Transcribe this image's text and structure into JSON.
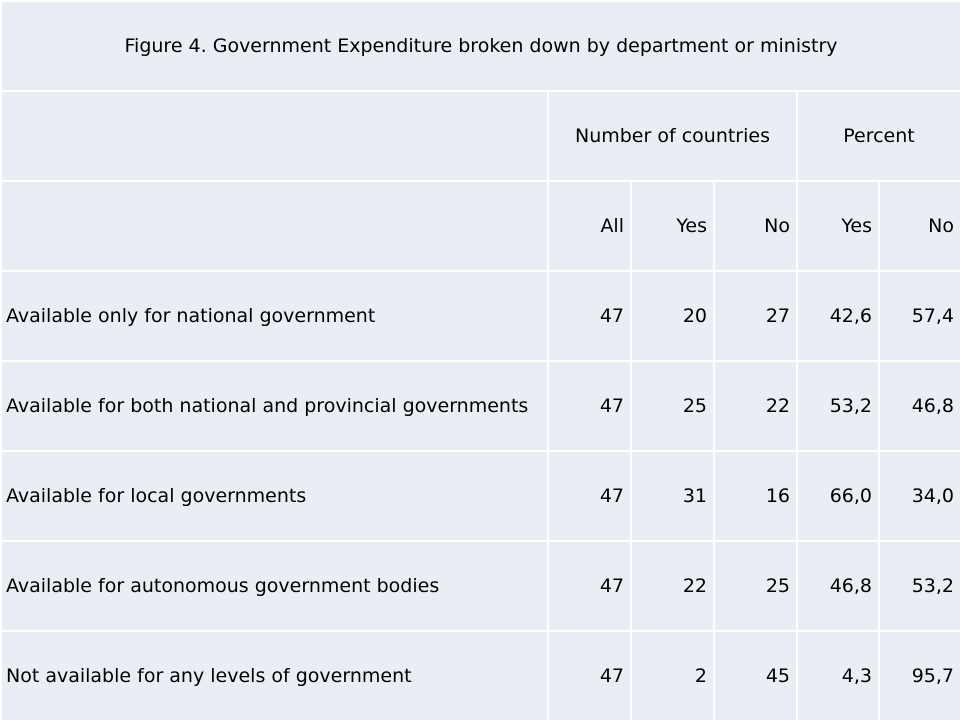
{
  "chart_data": {
    "type": "table",
    "title": "Figure 4. Government Expenditure broken down by department or ministry",
    "group_headers": [
      "Number of countries",
      "Percent"
    ],
    "columns": [
      "All",
      "Yes",
      "No",
      "Yes",
      "No"
    ],
    "rows": [
      {
        "label": "Available only for national government",
        "values": [
          "47",
          "20",
          "27",
          "42,6",
          "57,4"
        ]
      },
      {
        "label": "Available for both national and provincial governments",
        "values": [
          "47",
          "25",
          "22",
          "53,2",
          "46,8"
        ]
      },
      {
        "label": "Available for local governments",
        "values": [
          "47",
          "31",
          "16",
          "66,0",
          "34,0"
        ]
      },
      {
        "label": "Available for autonomous government bodies",
        "values": [
          "47",
          "22",
          "25",
          "46,8",
          "53,2"
        ]
      },
      {
        "label": "Not available for any levels of government",
        "values": [
          "47",
          "2",
          "45",
          "4,3",
          "95,7"
        ]
      }
    ]
  },
  "colors": {
    "cell_background": "#e9edf4",
    "grid_lines": "#ffffff"
  }
}
